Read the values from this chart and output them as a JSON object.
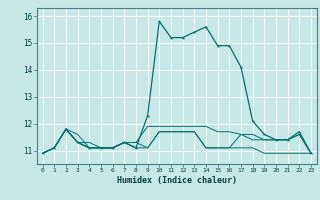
{
  "title": "",
  "xlabel": "Humidex (Indice chaleur)",
  "background_color": "#c8e8e8",
  "grid_color": "#ffffff",
  "line_color": "#007070",
  "x_values": [
    0,
    1,
    2,
    3,
    4,
    5,
    6,
    7,
    8,
    9,
    10,
    11,
    12,
    13,
    14,
    15,
    16,
    17,
    18,
    19,
    20,
    21,
    22,
    23
  ],
  "series1": [
    10.9,
    11.1,
    11.8,
    11.3,
    11.1,
    11.1,
    11.1,
    11.3,
    11.1,
    12.3,
    15.8,
    15.2,
    15.2,
    15.4,
    15.6,
    14.9,
    14.9,
    14.1,
    12.1,
    11.6,
    11.4,
    11.4,
    11.7,
    10.9
  ],
  "series2": [
    10.9,
    11.1,
    11.8,
    11.6,
    11.1,
    11.1,
    11.1,
    11.3,
    11.1,
    11.1,
    11.7,
    11.7,
    11.7,
    11.7,
    11.1,
    11.1,
    11.1,
    11.1,
    11.1,
    10.9,
    10.9,
    10.9,
    10.9,
    10.9
  ],
  "series3": [
    10.9,
    11.1,
    11.8,
    11.3,
    11.3,
    11.1,
    11.1,
    11.3,
    11.3,
    11.9,
    11.9,
    11.9,
    11.9,
    11.9,
    11.9,
    11.7,
    11.7,
    11.6,
    11.6,
    11.4,
    11.4,
    11.4,
    11.6,
    10.9
  ],
  "series4": [
    10.9,
    11.1,
    11.8,
    11.3,
    11.1,
    11.1,
    11.1,
    11.3,
    11.3,
    11.1,
    11.7,
    11.7,
    11.7,
    11.7,
    11.1,
    11.1,
    11.1,
    11.6,
    11.4,
    11.4,
    11.4,
    11.4,
    11.6,
    10.9
  ],
  "ylim": [
    10.5,
    16.3
  ],
  "xlim": [
    -0.5,
    23.5
  ],
  "yticks": [
    11,
    12,
    13,
    14,
    15,
    16
  ],
  "xticks": [
    0,
    1,
    2,
    3,
    4,
    5,
    6,
    7,
    8,
    9,
    10,
    11,
    12,
    13,
    14,
    15,
    16,
    17,
    18,
    19,
    20,
    21,
    22,
    23
  ]
}
